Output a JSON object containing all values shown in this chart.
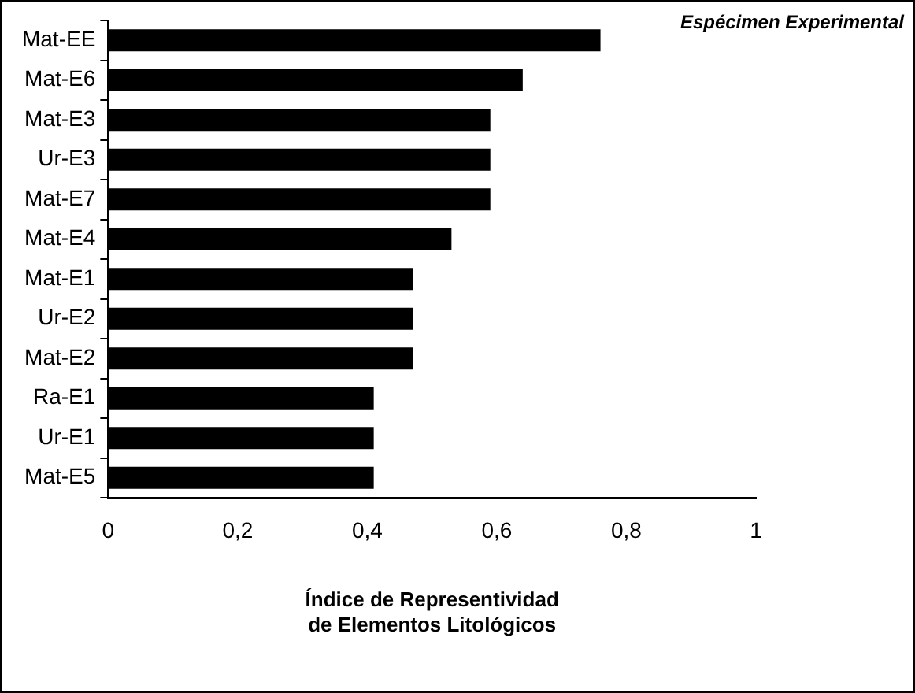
{
  "chart_data": {
    "type": "bar",
    "orientation": "horizontal",
    "categories": [
      "Mat-EE",
      "Mat-E6",
      "Mat-E3",
      "Ur-E3",
      "Mat-E7",
      "Mat-E4",
      "Mat-E1",
      "Ur-E2",
      "Mat-E2",
      "Ra-E1",
      "Ur-E1",
      "Mat-E5"
    ],
    "values": [
      0.76,
      0.64,
      0.59,
      0.59,
      0.59,
      0.53,
      0.47,
      0.47,
      0.47,
      0.41,
      0.41,
      0.41
    ],
    "color": "#000000",
    "xlabel": "Índice de Representividad\nde Elementos Litológicos",
    "xlim": [
      0,
      1
    ],
    "xticks": [
      {
        "value": 0,
        "label": "0"
      },
      {
        "value": 0.2,
        "label": "0,2"
      },
      {
        "value": 0.4,
        "label": "0,4"
      },
      {
        "value": 0.6,
        "label": "0,6"
      },
      {
        "value": 0.8,
        "label": "0,8"
      },
      {
        "value": 1,
        "label": "1"
      }
    ],
    "annotations": [
      "Espécimen Experimental"
    ],
    "grid": false,
    "legend": false
  }
}
